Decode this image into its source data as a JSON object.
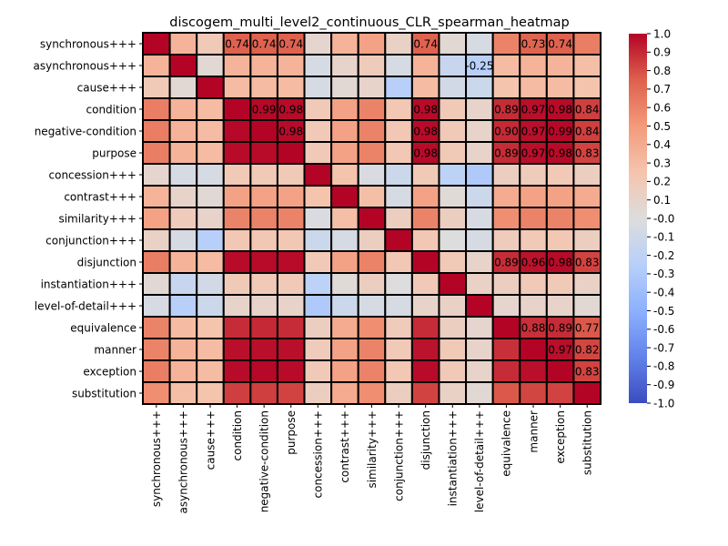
{
  "chart_data": {
    "type": "heatmap",
    "title": "discogem_multi_level2_continuous_CLR_spearman_heatmap",
    "labels": [
      "synchronous+++",
      "asynchronous+++",
      "cause+++",
      "condition",
      "negative-condition",
      "purpose",
      "concession+++",
      "contrast+++",
      "similarity+++",
      "conjunction+++",
      "disjunction",
      "instantiation+++",
      "level-of-detail+++",
      "equivalence",
      "manner",
      "exception",
      "substitution"
    ],
    "matrix": [
      [
        1.0,
        0.35,
        0.2,
        0.74,
        0.74,
        0.74,
        0.08,
        0.35,
        0.45,
        0.12,
        0.74,
        0.05,
        -0.05,
        0.6,
        0.73,
        0.74,
        0.62
      ],
      [
        0.35,
        1.0,
        0.05,
        0.35,
        0.35,
        0.35,
        -0.05,
        0.1,
        0.18,
        -0.05,
        0.35,
        -0.15,
        -0.25,
        0.3,
        0.35,
        0.35,
        0.28
      ],
      [
        0.2,
        0.05,
        1.0,
        0.3,
        0.3,
        0.3,
        -0.05,
        0.05,
        0.1,
        -0.25,
        0.3,
        -0.08,
        -0.12,
        0.25,
        0.3,
        0.3,
        0.25
      ],
      [
        0.62,
        0.35,
        0.3,
        1.0,
        0.99,
        0.98,
        0.2,
        0.45,
        0.6,
        0.22,
        0.98,
        0.2,
        0.1,
        0.89,
        0.97,
        0.98,
        0.84
      ],
      [
        0.62,
        0.35,
        0.3,
        0.99,
        1.0,
        0.98,
        0.2,
        0.45,
        0.6,
        0.22,
        0.98,
        0.2,
        0.1,
        0.9,
        0.97,
        0.99,
        0.84
      ],
      [
        0.62,
        0.35,
        0.3,
        0.98,
        0.98,
        1.0,
        0.2,
        0.45,
        0.6,
        0.22,
        0.98,
        0.2,
        0.1,
        0.89,
        0.97,
        0.98,
        0.83
      ],
      [
        0.08,
        -0.05,
        -0.05,
        0.2,
        0.2,
        0.2,
        1.0,
        0.25,
        -0.03,
        -0.12,
        0.2,
        -0.22,
        -0.3,
        0.15,
        0.18,
        0.2,
        0.15
      ],
      [
        0.35,
        0.1,
        0.05,
        0.45,
        0.45,
        0.45,
        0.25,
        1.0,
        0.28,
        -0.05,
        0.45,
        0.03,
        -0.12,
        0.4,
        0.45,
        0.45,
        0.4
      ],
      [
        0.45,
        0.18,
        0.1,
        0.6,
        0.6,
        0.6,
        -0.03,
        0.28,
        1.0,
        0.15,
        0.6,
        0.15,
        -0.05,
        0.55,
        0.6,
        0.6,
        0.55
      ],
      [
        0.12,
        -0.05,
        -0.25,
        0.22,
        0.22,
        0.22,
        -0.12,
        -0.05,
        0.15,
        1.0,
        0.22,
        0.0,
        -0.05,
        0.18,
        0.2,
        0.22,
        0.15
      ],
      [
        0.62,
        0.35,
        0.3,
        0.98,
        0.98,
        0.98,
        0.2,
        0.45,
        0.6,
        0.22,
        1.0,
        0.2,
        0.1,
        0.89,
        0.96,
        0.98,
        0.83
      ],
      [
        0.05,
        -0.15,
        -0.08,
        0.2,
        0.2,
        0.2,
        -0.22,
        0.03,
        0.15,
        0.0,
        0.2,
        1.0,
        0.12,
        0.15,
        0.2,
        0.2,
        0.12
      ],
      [
        -0.05,
        -0.25,
        -0.12,
        0.1,
        0.1,
        0.1,
        -0.3,
        -0.12,
        -0.05,
        -0.05,
        0.1,
        0.12,
        1.0,
        0.08,
        0.1,
        0.1,
        0.05
      ],
      [
        0.6,
        0.3,
        0.25,
        0.89,
        0.9,
        0.89,
        0.15,
        0.4,
        0.55,
        0.18,
        0.89,
        0.15,
        0.08,
        1.0,
        0.88,
        0.89,
        0.77
      ],
      [
        0.6,
        0.35,
        0.3,
        0.97,
        0.97,
        0.97,
        0.18,
        0.45,
        0.6,
        0.2,
        0.96,
        0.2,
        0.1,
        0.88,
        1.0,
        0.97,
        0.82
      ],
      [
        0.62,
        0.35,
        0.3,
        0.98,
        0.99,
        0.98,
        0.2,
        0.45,
        0.6,
        0.22,
        0.98,
        0.2,
        0.1,
        0.89,
        0.97,
        1.0,
        0.83
      ],
      [
        0.55,
        0.28,
        0.25,
        0.84,
        0.84,
        0.83,
        0.15,
        0.4,
        0.55,
        0.15,
        0.83,
        0.12,
        0.05,
        0.77,
        0.82,
        0.83,
        1.0
      ]
    ],
    "annotations": [
      {
        "row": 0,
        "col": 3,
        "text": "0.74"
      },
      {
        "row": 0,
        "col": 4,
        "text": "0.74"
      },
      {
        "row": 0,
        "col": 5,
        "text": "0.74"
      },
      {
        "row": 0,
        "col": 10,
        "text": "0.74"
      },
      {
        "row": 0,
        "col": 14,
        "text": "0.73"
      },
      {
        "row": 0,
        "col": 15,
        "text": "0.74"
      },
      {
        "row": 1,
        "col": 12,
        "text": "-0.25"
      },
      {
        "row": 3,
        "col": 4,
        "text": "0.99"
      },
      {
        "row": 3,
        "col": 5,
        "text": "0.98"
      },
      {
        "row": 3,
        "col": 10,
        "text": "0.98"
      },
      {
        "row": 3,
        "col": 13,
        "text": "0.89"
      },
      {
        "row": 3,
        "col": 14,
        "text": "0.97"
      },
      {
        "row": 3,
        "col": 15,
        "text": "0.98"
      },
      {
        "row": 3,
        "col": 16,
        "text": "0.84"
      },
      {
        "row": 4,
        "col": 5,
        "text": "0.98"
      },
      {
        "row": 4,
        "col": 10,
        "text": "0.98"
      },
      {
        "row": 4,
        "col": 13,
        "text": "0.90"
      },
      {
        "row": 4,
        "col": 14,
        "text": "0.97"
      },
      {
        "row": 4,
        "col": 15,
        "text": "0.99"
      },
      {
        "row": 4,
        "col": 16,
        "text": "0.84"
      },
      {
        "row": 5,
        "col": 10,
        "text": "0.98"
      },
      {
        "row": 5,
        "col": 13,
        "text": "0.89"
      },
      {
        "row": 5,
        "col": 14,
        "text": "0.97"
      },
      {
        "row": 5,
        "col": 15,
        "text": "0.98"
      },
      {
        "row": 5,
        "col": 16,
        "text": "0.83"
      },
      {
        "row": 10,
        "col": 13,
        "text": "0.89"
      },
      {
        "row": 10,
        "col": 14,
        "text": "0.96"
      },
      {
        "row": 10,
        "col": 15,
        "text": "0.98"
      },
      {
        "row": 10,
        "col": 16,
        "text": "0.83"
      },
      {
        "row": 13,
        "col": 14,
        "text": "0.88"
      },
      {
        "row": 13,
        "col": 15,
        "text": "0.89"
      },
      {
        "row": 13,
        "col": 16,
        "text": "0.77"
      },
      {
        "row": 14,
        "col": 15,
        "text": "0.97"
      },
      {
        "row": 14,
        "col": 16,
        "text": "0.82"
      },
      {
        "row": 15,
        "col": 16,
        "text": "0.83"
      }
    ],
    "colorbar": {
      "colormap": "coolwarm",
      "vmin": -1.0,
      "vmax": 1.0,
      "ticks": [
        "1.0",
        "0.9",
        "0.8",
        "0.7",
        "0.6",
        "0.5",
        "0.4",
        "0.3",
        "0.2",
        "0.1",
        "-0.0",
        "-0.1",
        "-0.2",
        "-0.3",
        "-0.4",
        "-0.5",
        "-0.6",
        "-0.7",
        "-0.8",
        "-0.9",
        "-1.0"
      ]
    },
    "grid": true,
    "legend": "colorbar-right"
  }
}
